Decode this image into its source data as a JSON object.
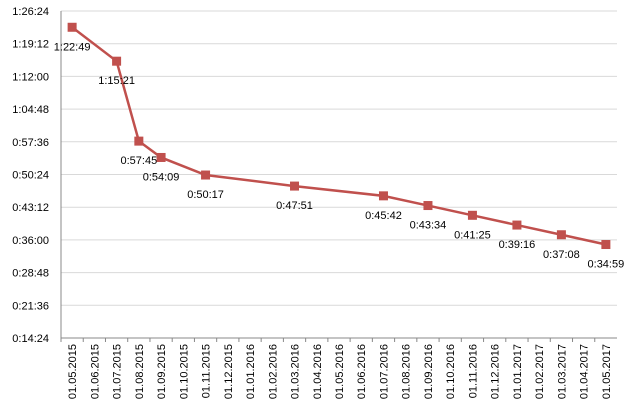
{
  "chart_data": {
    "type": "line",
    "categories": [
      "01.05.2015",
      "01.06.2015",
      "01.07.2015",
      "01.08.2015",
      "01.09.2015",
      "01.10.2015",
      "01.11.2015",
      "01.12.2015",
      "01.01.2016",
      "01.02.2016",
      "01.03.2016",
      "01.04.2016",
      "01.05.2016",
      "01.06.2016",
      "01.07.2016",
      "01.08.2016",
      "01.09.2016",
      "01.10.2016",
      "01.11.2016",
      "01.12.2016",
      "01.01.2017",
      "01.02.2017",
      "01.03.2017",
      "01.04.2017",
      "01.05.2017"
    ],
    "series": [
      {
        "color": "#c0504d",
        "x": [
          "01.05.2015",
          "01.07.2015",
          "01.08.2015",
          "01.09.2015",
          "01.11.2015",
          "01.03.2016",
          "01.07.2016",
          "01.09.2016",
          "01.11.2016",
          "01.01.2017",
          "01.03.2017",
          "01.05.2017"
        ],
        "values": [
          4969,
          4521,
          3465,
          3249,
          3017,
          2871,
          2742,
          2614,
          2485,
          2356,
          2228,
          2099
        ],
        "value_labels": [
          "1:22:49",
          "1:15:21",
          "0:57:45",
          "0:54:09",
          "0:50:17",
          "0:47:51",
          "0:45:42",
          "0:43:34",
          "0:41:25",
          "0:39:16",
          "0:37:08",
          "0:34:59"
        ]
      }
    ],
    "ylim": [
      864,
      5184
    ],
    "yticks": [
      {
        "value": 864,
        "label": "0:14:24"
      },
      {
        "value": 1296,
        "label": "0:21:36"
      },
      {
        "value": 1728,
        "label": "0:28:48"
      },
      {
        "value": 2160,
        "label": "0:36:00"
      },
      {
        "value": 2592,
        "label": "0:43:12"
      },
      {
        "value": 3024,
        "label": "0:50:24"
      },
      {
        "value": 3456,
        "label": "0:57:36"
      },
      {
        "value": 3888,
        "label": "1:04:48"
      },
      {
        "value": 4320,
        "label": "1:12:00"
      },
      {
        "value": 4752,
        "label": "1:19:12"
      },
      {
        "value": 5184,
        "label": "1:26:24"
      }
    ],
    "grid": true
  }
}
